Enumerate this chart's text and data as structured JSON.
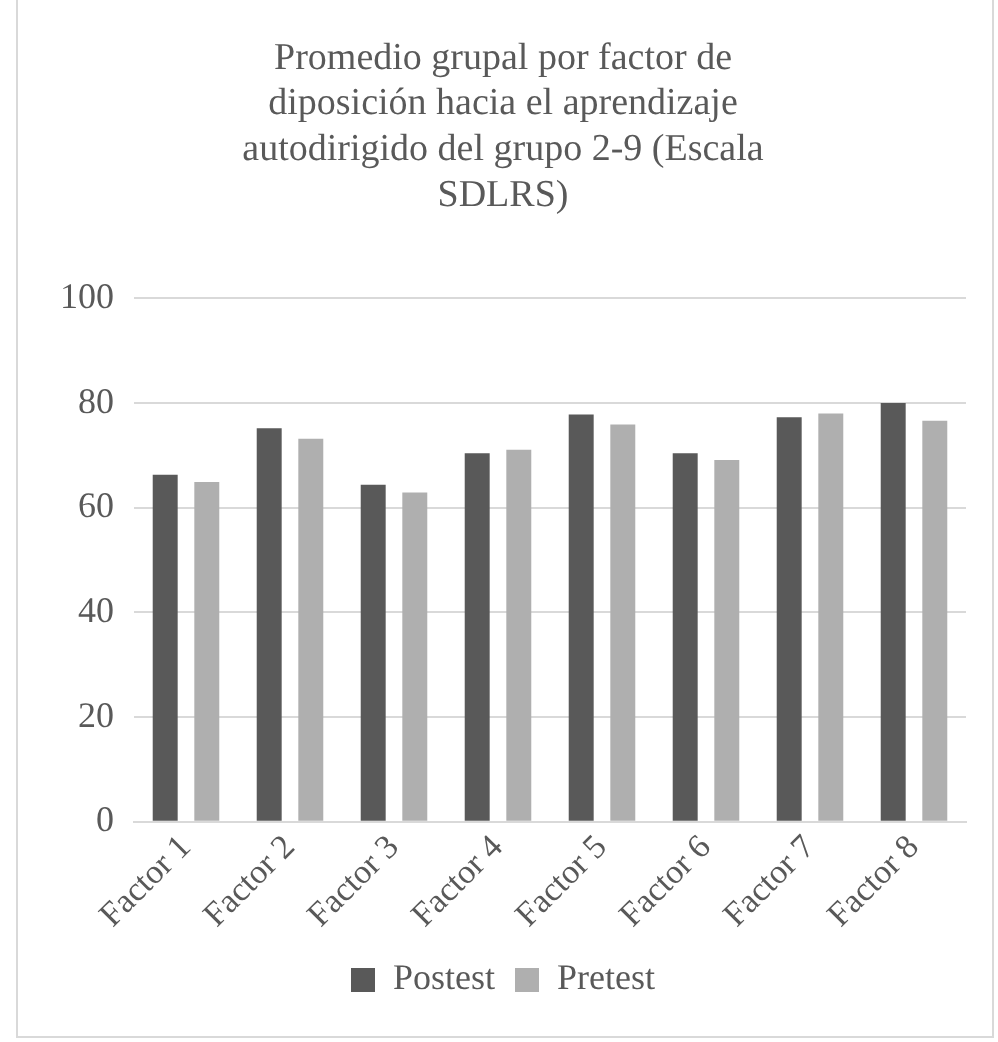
{
  "chart_data": {
    "type": "bar",
    "title": "Promedio grupal por factor de diposición hacia el aprendizaje autodirigido del grupo 2-9 (Escala SDLRS)",
    "categories": [
      "Factor 1",
      "Factor 2",
      "Factor 3",
      "Factor 4",
      "Factor 5",
      "Factor 6",
      "Factor 7",
      "Factor 8"
    ],
    "series": [
      {
        "name": "Postest",
        "color": "#595959",
        "values": [
          66.3,
          75.2,
          64.4,
          70.4,
          77.8,
          70.4,
          77.3,
          80.0
        ]
      },
      {
        "name": "Pretest",
        "color": "#afafaf",
        "values": [
          64.9,
          73.2,
          62.9,
          71.1,
          75.9,
          69.1,
          78.0,
          76.6
        ]
      }
    ],
    "ylim": [
      0,
      100
    ],
    "yticks": [
      0,
      20,
      40,
      60,
      80,
      100
    ],
    "grid": "y",
    "legend": "bottom"
  }
}
